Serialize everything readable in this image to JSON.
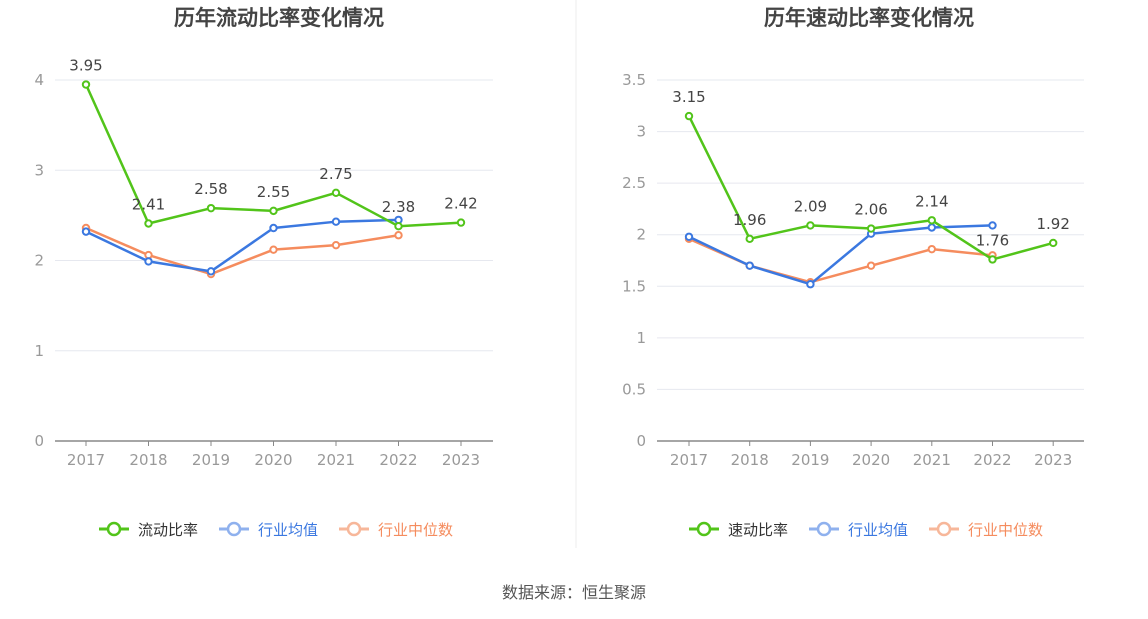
{
  "source_text": "数据来源：恒生聚源",
  "colors": {
    "primary": "#52c41a",
    "avg": "#3b78e0",
    "median": "#f58c5e",
    "grid": "#e6e8ef",
    "axis": "#888888",
    "legend_avg_faded": "#8fb1ee",
    "legend_median_faded": "#f7b79a"
  },
  "chart_data": [
    {
      "type": "line",
      "title": "历年流动比率变化情况",
      "categories": [
        "2017",
        "2018",
        "2019",
        "2020",
        "2021",
        "2022",
        "2023"
      ],
      "ylim": [
        0,
        4
      ],
      "yticks": [
        0,
        1,
        2,
        3,
        4
      ],
      "ytick_labels": [
        "0",
        "1",
        "2",
        "3",
        "4"
      ],
      "grid": true,
      "legend_position": "bottom",
      "series": [
        {
          "name": "流动比率",
          "values": [
            3.95,
            2.41,
            2.58,
            2.55,
            2.75,
            2.38,
            2.42
          ],
          "labels": [
            "3.95",
            "2.41",
            "2.58",
            "2.55",
            "2.75",
            "2.38",
            "2.42"
          ],
          "show_labels": true
        },
        {
          "name": "行业均值",
          "values": [
            2.32,
            1.99,
            1.88,
            2.36,
            2.43,
            2.45,
            null
          ],
          "show_labels": false
        },
        {
          "name": "行业中位数",
          "values": [
            2.36,
            2.06,
            1.85,
            2.12,
            2.17,
            2.28,
            null
          ],
          "show_labels": false
        }
      ]
    },
    {
      "type": "line",
      "title": "历年速动比率变化情况",
      "categories": [
        "2017",
        "2018",
        "2019",
        "2020",
        "2021",
        "2022",
        "2023"
      ],
      "ylim": [
        0,
        3.5
      ],
      "yticks": [
        0,
        0.5,
        1,
        1.5,
        2,
        2.5,
        3,
        3.5
      ],
      "ytick_labels": [
        "0",
        "0.5",
        "1",
        "1.5",
        "2",
        "2.5",
        "3",
        "3.5"
      ],
      "grid": true,
      "legend_position": "bottom",
      "series": [
        {
          "name": "速动比率",
          "values": [
            3.15,
            1.96,
            2.09,
            2.06,
            2.14,
            1.76,
            1.92
          ],
          "labels": [
            "3.15",
            "1.96",
            "2.09",
            "2.06",
            "2.14",
            "1.76",
            "1.92"
          ],
          "show_labels": true
        },
        {
          "name": "行业均值",
          "values": [
            1.98,
            1.7,
            1.52,
            2.01,
            2.07,
            2.09,
            null
          ],
          "show_labels": false
        },
        {
          "name": "行业中位数",
          "values": [
            1.96,
            1.7,
            1.54,
            1.7,
            1.86,
            1.8,
            null
          ],
          "show_labels": false
        }
      ]
    }
  ]
}
